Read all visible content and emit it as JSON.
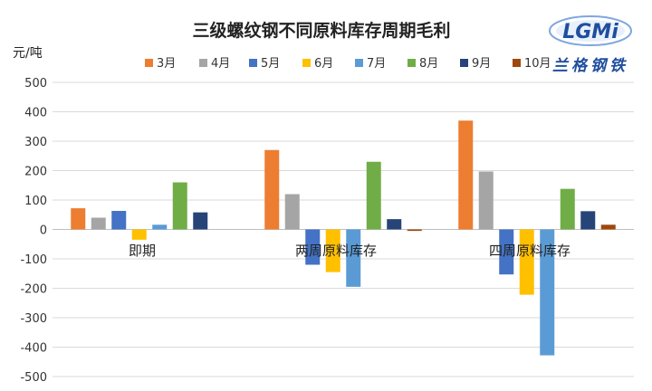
{
  "chart_data": {
    "type": "bar",
    "title": "三级螺纹钢不同原料库存周期毛利",
    "ylabel": "元/吨",
    "ylim": [
      -500,
      500
    ],
    "yticks": [
      500,
      400,
      300,
      200,
      100,
      0,
      -100,
      -200,
      -300,
      -400,
      -500
    ],
    "grid": true,
    "legend_position": "top",
    "categories": [
      "即期",
      "两周原料库存",
      "四周原料库存"
    ],
    "series": [
      {
        "name": "3月",
        "color": "#ED7D31",
        "values": [
          72,
          270,
          370
        ]
      },
      {
        "name": "4月",
        "color": "#A5A5A5",
        "values": [
          40,
          120,
          197
        ]
      },
      {
        "name": "5月",
        "color": "#4472C4",
        "values": [
          63,
          -120,
          -153
        ]
      },
      {
        "name": "6月",
        "color": "#FFC000",
        "values": [
          -35,
          -145,
          -222
        ]
      },
      {
        "name": "7月",
        "color": "#5B9BD5",
        "values": [
          16,
          -195,
          -428
        ]
      },
      {
        "name": "8月",
        "color": "#70AD47",
        "values": [
          160,
          230,
          138
        ]
      },
      {
        "name": "9月",
        "color": "#264478",
        "values": [
          58,
          35,
          62
        ]
      },
      {
        "name": "10月",
        "color": "#9E480E",
        "values": [
          0,
          -5,
          16
        ]
      }
    ]
  },
  "logo": {
    "mark": "LGMi",
    "caption": "兰格钢铁",
    "color": "#1F4E9E"
  }
}
